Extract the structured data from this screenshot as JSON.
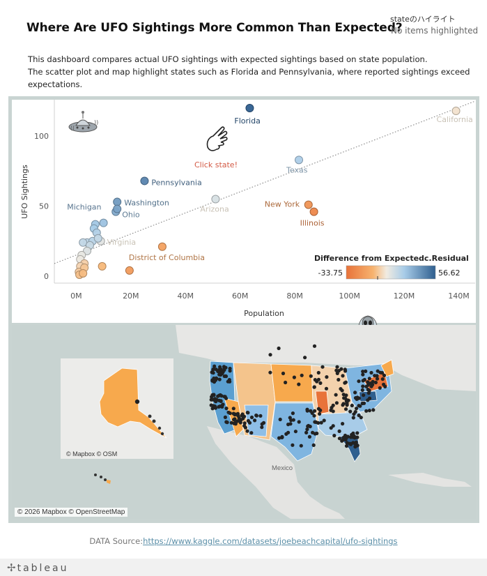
{
  "title": "Where Are UFO Sightings More Common Than Expected?",
  "highlight": {
    "label": "stateのハイライト",
    "value": "No items highlighted"
  },
  "description": {
    "line1": "This dashboard compares actual UFO sightings with expected sightings based on state population.",
    "line2": "The scatter plot and map highlight states such as Florida and Pennsylvania, where reported sightings exceed",
    "line3": "expectations."
  },
  "annotation": "Click state!",
  "chart_data": {
    "type": "scatter",
    "xlabel": "Population",
    "ylabel": "UFO Sightings",
    "xlim": [
      -8,
      146
    ],
    "ylim": [
      -5,
      126
    ],
    "x_ticks": [
      0,
      20,
      40,
      60,
      80,
      100,
      120,
      140
    ],
    "x_tick_labels": [
      "0M",
      "20M",
      "40M",
      "60M",
      "80M",
      "100M",
      "120M",
      "140M"
    ],
    "y_ticks": [
      0,
      50,
      100
    ],
    "y_tick_labels": [
      "0",
      "50",
      "100"
    ],
    "trend_line": {
      "style": "dotted",
      "from": [
        -8,
        9
      ],
      "to": [
        146,
        125
      ]
    },
    "legend": {
      "title": "Difference from Expectedc.Residual",
      "min_label": "-33.75",
      "max_label": "56.62",
      "min": -33.75,
      "max": 56.62,
      "colors": [
        "#e8733a",
        "#f7b36f",
        "#f1ebe1",
        "#a8cce8",
        "#2f5f8f"
      ]
    },
    "points": [
      {
        "name": "California",
        "x": 139,
        "y": 118,
        "residual": -2,
        "label": "California"
      },
      {
        "name": "Florida",
        "x": 63.5,
        "y": 120,
        "residual": 56.62,
        "label": "Florida"
      },
      {
        "name": "Texas",
        "x": 81.5,
        "y": 83,
        "residual": 13,
        "label": "Texas"
      },
      {
        "name": "Pennsylvania",
        "x": 25,
        "y": 68,
        "residual": 42,
        "label": "Pennsylvania"
      },
      {
        "name": "Washington",
        "x": 15,
        "y": 53,
        "residual": 33,
        "label": "Washington"
      },
      {
        "name": "Ohio",
        "x": 14.5,
        "y": 46,
        "residual": 27,
        "label": "Ohio"
      },
      {
        "name": "Michigan",
        "x": 15,
        "y": 48,
        "residual": 30,
        "label": "Michigan"
      },
      {
        "name": "Arizona",
        "x": 51,
        "y": 55,
        "residual": 5,
        "label": "Arizona"
      },
      {
        "name": "New York",
        "x": 85,
        "y": 51,
        "residual": -23,
        "label": "New York"
      },
      {
        "name": "Illinois",
        "x": 87,
        "y": 46,
        "residual": -27,
        "label": "Illinois"
      },
      {
        "name": "Virginia",
        "x": 9,
        "y": 25,
        "residual": 3,
        "label": "Virginia"
      },
      {
        "name": "District of Columbia",
        "x": 31.5,
        "y": 21,
        "residual": -18,
        "label": "District of Columbia"
      },
      {
        "name": "",
        "x": 10,
        "y": 38,
        "residual": 18
      },
      {
        "name": "",
        "x": 7,
        "y": 37,
        "residual": 16
      },
      {
        "name": "",
        "x": 6.5,
        "y": 34,
        "residual": 14
      },
      {
        "name": "",
        "x": 7.5,
        "y": 31,
        "residual": 12
      },
      {
        "name": "",
        "x": 4,
        "y": 24,
        "residual": 10
      },
      {
        "name": "",
        "x": 6,
        "y": 25,
        "residual": 11
      },
      {
        "name": "",
        "x": 2.5,
        "y": 24,
        "residual": 9
      },
      {
        "name": "",
        "x": 5,
        "y": 22,
        "residual": 8
      },
      {
        "name": "",
        "x": 8,
        "y": 27,
        "residual": 9
      },
      {
        "name": "",
        "x": 4,
        "y": 18,
        "residual": 4
      },
      {
        "name": "",
        "x": 2,
        "y": 15,
        "residual": 2
      },
      {
        "name": "",
        "x": 1.5,
        "y": 12,
        "residual": 1
      },
      {
        "name": "",
        "x": 9.5,
        "y": 7,
        "residual": -11
      },
      {
        "name": "",
        "x": 19.5,
        "y": 4,
        "residual": -20
      },
      {
        "name": "",
        "x": 3,
        "y": 9,
        "residual": -6
      },
      {
        "name": "",
        "x": 1.5,
        "y": 7,
        "residual": -5
      },
      {
        "name": "",
        "x": 1,
        "y": 3,
        "residual": -7
      },
      {
        "name": "",
        "x": 3,
        "y": 6,
        "residual": -8
      },
      {
        "name": "",
        "x": 1.2,
        "y": 1,
        "residual": -9
      },
      {
        "name": "",
        "x": 2.5,
        "y": 2,
        "residual": -10
      }
    ]
  },
  "map": {
    "attribution": "© 2026 Mapbox © OpenStreetMap",
    "inset_attribution": "© Mapbox © OSM",
    "mexico_label": "Mexico"
  },
  "source": {
    "prefix": "DATA Source:",
    "url": "https://www.kaggle.com/datasets/joebeachcapital/ufo-sightings"
  },
  "footer": {
    "logo_text": "tableau"
  }
}
